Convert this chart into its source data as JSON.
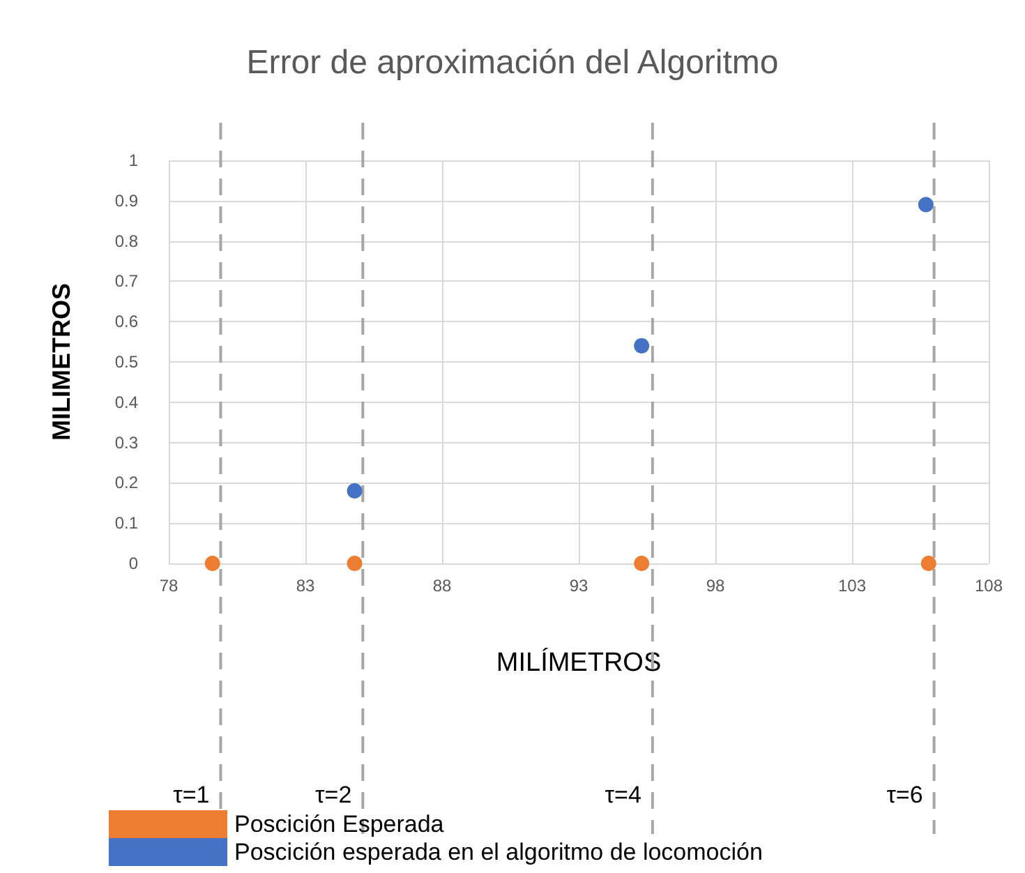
{
  "chart_data": {
    "type": "scatter",
    "title": "Error de aproximación del Algoritmo",
    "xlabel": "MILÍMETROS",
    "ylabel": "MILIMETROS",
    "series": [
      {
        "name": "Poscición Esperada",
        "color": "#ed7d31",
        "x": [
          79.6,
          84.8,
          95.3,
          105.8
        ],
        "values": [
          0,
          0,
          0,
          0
        ]
      },
      {
        "name": "Poscición esperada en el algoritmo de locomoción",
        "color": "#4472c4",
        "x": [
          84.8,
          95.3,
          105.7
        ],
        "values": [
          0.18,
          0.54,
          0.89
        ]
      }
    ],
    "xlim": [
      78,
      108
    ],
    "xticks": [
      78,
      83,
      88,
      93,
      98,
      103,
      108
    ],
    "ylim": [
      0,
      1
    ],
    "yticks": [
      0,
      0.1,
      0.2,
      0.3,
      0.4,
      0.5,
      0.6,
      0.7,
      0.8,
      0.9,
      1
    ],
    "ref_lines": [
      {
        "axis": "x",
        "value": 79.9,
        "color": "#a6a6a6",
        "line_style": "dashed"
      },
      {
        "axis": "x",
        "value": 85.1,
        "color": "#a6a6a6",
        "line_style": "dashed"
      },
      {
        "axis": "x",
        "value": 95.7,
        "color": "#a6a6a6",
        "line_style": "dashed"
      },
      {
        "axis": "x",
        "value": 106.0,
        "color": "#a6a6a6",
        "line_style": "dashed"
      }
    ],
    "annotations": [
      {
        "text": "τ=1",
        "x": 79.9
      },
      {
        "text": "τ=2",
        "x": 85.1
      },
      {
        "text": "τ=4",
        "x": 95.7
      },
      {
        "text": "τ=6",
        "x": 106.0
      }
    ],
    "grid": true,
    "legend": "bottom left",
    "marker": "circle"
  }
}
